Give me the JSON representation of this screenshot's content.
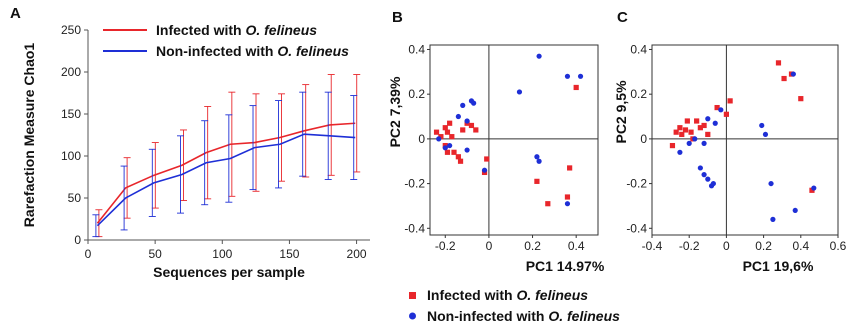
{
  "panels": {
    "a": "A",
    "b": "B",
    "c": "C"
  },
  "legend": {
    "infected_prefix": "Infected with ",
    "infected_species": "O. felineus",
    "noninfected_prefix": "Non-infected with ",
    "noninfected_species": "O. felineus"
  },
  "colors": {
    "infected": "#e8262b",
    "noninfected": "#1e2fd6"
  },
  "chart_data": [
    {
      "id": "A",
      "type": "line",
      "xlabel": "Sequences per sample",
      "ylabel": "Rarefaction Measure Chao1",
      "xlim": [
        0,
        210
      ],
      "ylim": [
        0,
        250
      ],
      "xticks": [
        0,
        50,
        100,
        150,
        200
      ],
      "yticks": [
        0,
        50,
        100,
        150,
        200,
        250
      ],
      "legend_position": "top",
      "x": [
        7,
        28,
        49,
        70,
        88,
        106,
        124,
        143,
        161,
        180,
        199
      ],
      "series": [
        {
          "name": "Infected with O. felineus",
          "color": "#e8262b",
          "values": [
            20,
            62,
            77,
            89,
            104,
            114,
            116,
            122,
            130,
            137,
            139
          ],
          "err": [
            16,
            36,
            39,
            42,
            55,
            62,
            58,
            52,
            55,
            60,
            58
          ]
        },
        {
          "name": "Non-infected with O. felineus",
          "color": "#1e2fd6",
          "values": [
            17,
            50,
            68,
            78,
            92,
            97,
            110,
            114,
            126,
            124,
            122
          ],
          "err": [
            13,
            38,
            40,
            46,
            50,
            52,
            50,
            52,
            50,
            52,
            50
          ]
        }
      ]
    },
    {
      "id": "B",
      "type": "scatter",
      "xlabel": "PC1 14.97%",
      "ylabel": "PC2 7,39%",
      "xlim": [
        -0.27,
        0.5
      ],
      "ylim": [
        -0.43,
        0.42
      ],
      "xticks": [
        -0.2,
        0.0,
        0.2,
        0.4
      ],
      "yticks": [
        -0.4,
        -0.2,
        0.0,
        0.2,
        0.4
      ],
      "series": [
        {
          "name": "Infected with O. felineus",
          "color": "#e8262b",
          "marker": "square",
          "points": [
            [
              -0.24,
              0.03
            ],
            [
              -0.22,
              0.01
            ],
            [
              -0.2,
              0.05
            ],
            [
              -0.19,
              0.03
            ],
            [
              -0.18,
              0.07
            ],
            [
              -0.17,
              0.01
            ],
            [
              -0.2,
              -0.03
            ],
            [
              -0.19,
              -0.06
            ],
            [
              -0.16,
              -0.06
            ],
            [
              -0.14,
              -0.08
            ],
            [
              -0.13,
              -0.1
            ],
            [
              -0.12,
              0.04
            ],
            [
              -0.1,
              0.07
            ],
            [
              -0.08,
              0.06
            ],
            [
              -0.06,
              0.04
            ],
            [
              -0.01,
              -0.09
            ],
            [
              -0.02,
              -0.15
            ],
            [
              0.22,
              -0.19
            ],
            [
              0.27,
              -0.29
            ],
            [
              0.36,
              -0.26
            ],
            [
              0.37,
              -0.13
            ],
            [
              0.4,
              0.23
            ]
          ]
        },
        {
          "name": "Non-infected with O. felineus",
          "color": "#1e2fd6",
          "marker": "circle",
          "points": [
            [
              -0.23,
              0.0
            ],
            [
              -0.2,
              -0.04
            ],
            [
              -0.18,
              -0.03
            ],
            [
              -0.14,
              0.1
            ],
            [
              -0.12,
              0.15
            ],
            [
              -0.1,
              0.08
            ],
            [
              -0.08,
              0.17
            ],
            [
              -0.07,
              0.16
            ],
            [
              -0.1,
              -0.05
            ],
            [
              -0.02,
              -0.14
            ],
            [
              0.14,
              0.21
            ],
            [
              0.22,
              -0.08
            ],
            [
              0.23,
              -0.1
            ],
            [
              0.23,
              0.37
            ],
            [
              0.36,
              0.28
            ],
            [
              0.42,
              0.28
            ],
            [
              0.36,
              -0.29
            ]
          ]
        }
      ]
    },
    {
      "id": "C",
      "type": "scatter",
      "xlabel": "PC1 19,6%",
      "ylabel": "PC2 9,5%",
      "xlim": [
        -0.4,
        0.6
      ],
      "ylim": [
        -0.43,
        0.42
      ],
      "xticks": [
        -0.4,
        -0.2,
        0.0,
        0.2,
        0.4,
        0.6
      ],
      "yticks": [
        -0.4,
        -0.2,
        0.0,
        0.2,
        0.4
      ],
      "series": [
        {
          "name": "Infected with O. felineus",
          "color": "#e8262b",
          "marker": "square",
          "points": [
            [
              -0.29,
              -0.03
            ],
            [
              -0.27,
              0.03
            ],
            [
              -0.25,
              0.05
            ],
            [
              -0.24,
              0.02
            ],
            [
              -0.22,
              0.04
            ],
            [
              -0.21,
              0.08
            ],
            [
              -0.19,
              0.03
            ],
            [
              -0.18,
              0.0
            ],
            [
              -0.16,
              0.08
            ],
            [
              -0.14,
              0.05
            ],
            [
              -0.12,
              0.06
            ],
            [
              -0.1,
              0.02
            ],
            [
              -0.05,
              0.14
            ],
            [
              0.0,
              0.11
            ],
            [
              0.02,
              0.17
            ],
            [
              0.28,
              0.34
            ],
            [
              0.31,
              0.27
            ],
            [
              0.35,
              0.29
            ],
            [
              0.4,
              0.18
            ],
            [
              0.46,
              -0.23
            ]
          ]
        },
        {
          "name": "Non-infected with O. felineus",
          "color": "#1e2fd6",
          "marker": "circle",
          "points": [
            [
              -0.25,
              -0.06
            ],
            [
              -0.2,
              -0.02
            ],
            [
              -0.17,
              0.0
            ],
            [
              -0.14,
              -0.13
            ],
            [
              -0.12,
              -0.16
            ],
            [
              -0.1,
              -0.18
            ],
            [
              -0.08,
              -0.21
            ],
            [
              -0.07,
              -0.2
            ],
            [
              -0.12,
              -0.02
            ],
            [
              -0.1,
              0.09
            ],
            [
              -0.06,
              0.07
            ],
            [
              -0.03,
              0.13
            ],
            [
              0.19,
              0.06
            ],
            [
              0.21,
              0.02
            ],
            [
              0.24,
              -0.2
            ],
            [
              0.25,
              -0.36
            ],
            [
              0.36,
              0.29
            ],
            [
              0.37,
              -0.32
            ],
            [
              0.47,
              -0.22
            ]
          ]
        }
      ]
    }
  ]
}
